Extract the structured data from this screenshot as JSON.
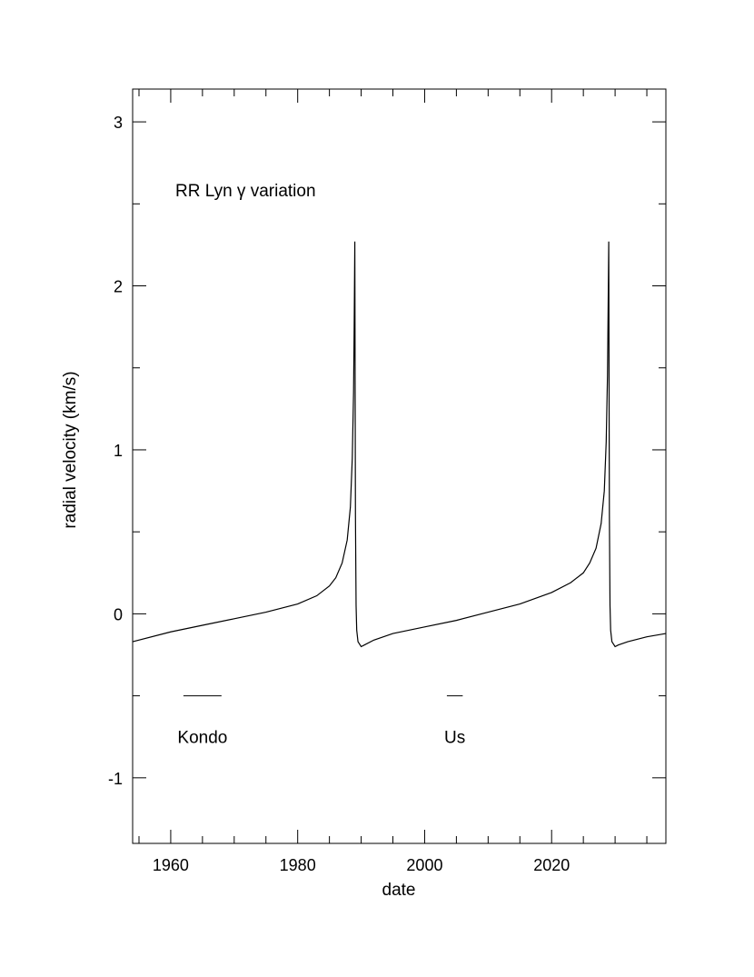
{
  "chart_data": {
    "type": "line",
    "xlabel": "date",
    "ylabel": "radial velocity (km/s)",
    "xlim": [
      1954,
      2038
    ],
    "ylim": [
      -1.4,
      3.2
    ],
    "x_ticks_major": [
      1960,
      1980,
      2000,
      2020
    ],
    "x_tick_labels": [
      "1960",
      "1980",
      "2000",
      "2020"
    ],
    "y_ticks_major": [
      -1,
      0,
      1,
      2,
      3
    ],
    "y_tick_labels": [
      "-1",
      "0",
      "1",
      "2",
      "3"
    ],
    "grid": false,
    "annotation": "RR Lyn γ variation",
    "series": [
      {
        "x": [
          1954,
          1960,
          1965,
          1970,
          1975,
          1980,
          1983,
          1985,
          1986,
          1987,
          1987.8,
          1988.3,
          1988.6,
          1988.8,
          1988.9,
          1989.0,
          1989.05,
          1989.1,
          1989.2,
          1989.3,
          1989.5,
          1990.0,
          1990.5,
          1992,
          1995,
          2000,
          2005,
          2010,
          2015,
          2020,
          2023,
          2025,
          2026,
          2027,
          2027.8,
          2028.3,
          2028.6,
          2028.8,
          2028.9,
          2029.0,
          2029.05,
          2029.1,
          2029.2,
          2029.3,
          2029.5,
          2030.0,
          2030.5,
          2032,
          2035,
          2038
        ],
        "y": [
          -0.17,
          -0.11,
          -0.07,
          -0.03,
          0.01,
          0.06,
          0.11,
          0.17,
          0.22,
          0.31,
          0.45,
          0.65,
          0.95,
          1.35,
          1.75,
          2.27,
          1.4,
          0.6,
          0.05,
          -0.1,
          -0.17,
          -0.2,
          -0.19,
          -0.16,
          -0.12,
          -0.08,
          -0.04,
          0.01,
          0.06,
          0.13,
          0.19,
          0.25,
          0.31,
          0.4,
          0.55,
          0.75,
          1.05,
          1.45,
          1.85,
          2.27,
          1.4,
          0.6,
          0.05,
          -0.1,
          -0.17,
          -0.2,
          -0.19,
          -0.17,
          -0.14,
          -0.12
        ]
      }
    ],
    "markers": [
      {
        "label": "Kondo",
        "x_start": 1962,
        "x_end": 1968,
        "y": -0.5,
        "label_y": -0.75
      },
      {
        "label": "Us",
        "x_start": 2003.5,
        "x_end": 2006,
        "y": -0.5,
        "label_y": -0.75
      }
    ]
  }
}
